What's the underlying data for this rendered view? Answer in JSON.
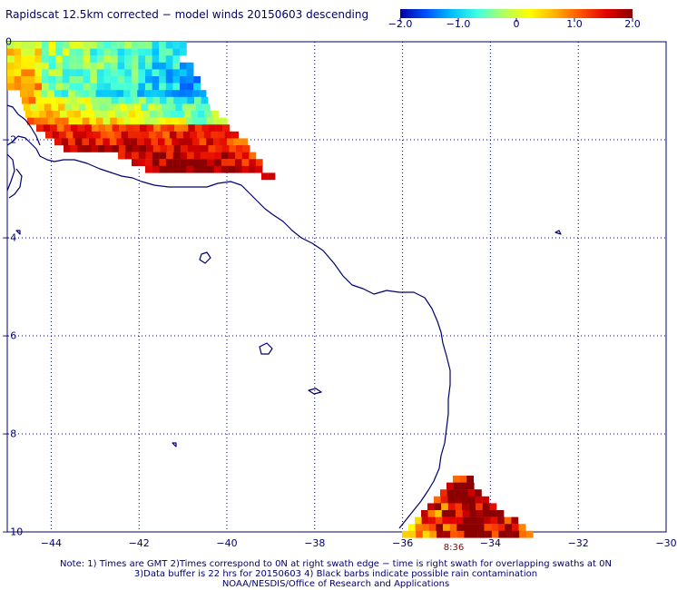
{
  "title": "Rapidscat 12.5km corrected − model winds 20150603 descending",
  "colorbar": {
    "min": -2.0,
    "max": 2.0,
    "tick_labels": [
      "−2.0",
      "−1.0",
      "0",
      "1.0",
      "2.0"
    ],
    "tick_values": [
      -2,
      -1,
      0,
      1,
      2
    ],
    "colors": [
      "#0000a0",
      "#0050ff",
      "#00c0ff",
      "#40ffe0",
      "#b0ff60",
      "#ffff00",
      "#ffb000",
      "#ff5000",
      "#e00000",
      "#8b0000"
    ]
  },
  "map": {
    "lon_range": [
      -45,
      -30
    ],
    "lat_range": [
      -10,
      0
    ],
    "lon_ticks": [
      -44,
      -42,
      -40,
      -38,
      -36,
      -34,
      -32,
      -30
    ],
    "lon_tick_labels": [
      "−44",
      "−42",
      "−40",
      "−38",
      "−36",
      "−34",
      "−32",
      "−30"
    ],
    "lat_ticks": [
      0,
      -2,
      -4,
      -6,
      -8,
      -10
    ],
    "lat_tick_labels": [
      "0",
      "−2",
      "−4",
      "−6",
      "−8",
      "−10"
    ],
    "coastline_color": "#00006e",
    "grid_color": "#00006e"
  },
  "swath_time_label": "8:36",
  "notes": [
    "Note: 1) Times are GMT 2)Times correspond to 0N at right swath edge − time is right swath for overlapping swaths at 0N",
    "3)Data buffer is 22 hrs for 20150603 4) Black barbs indicate possible rain contamination",
    "NOAA/NESDIS/Office of Research and Applications"
  ]
}
